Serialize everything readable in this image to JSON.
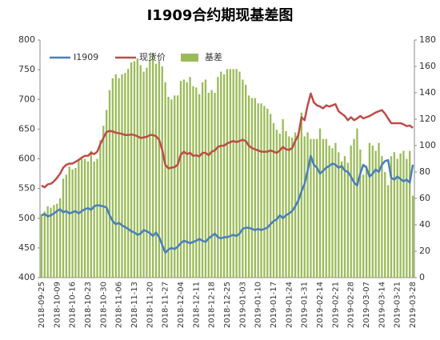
{
  "chart_data": {
    "type": "combo",
    "title": "I1909合约期现基差图",
    "categories": [
      "2018-09-25",
      null,
      null,
      null,
      null,
      "2018-10-09",
      null,
      null,
      null,
      null,
      "2018-10-16",
      null,
      null,
      null,
      null,
      "2018-10-23",
      null,
      null,
      null,
      null,
      "2018-10-30",
      null,
      null,
      null,
      null,
      "2018-11-06",
      null,
      null,
      null,
      null,
      "2018-11-13",
      null,
      null,
      null,
      null,
      "2018-11-20",
      null,
      null,
      null,
      null,
      "2018-11-27",
      null,
      null,
      null,
      null,
      "2018-12-04",
      null,
      null,
      null,
      null,
      "2018-12-11",
      null,
      null,
      null,
      null,
      "2018-12-18",
      null,
      null,
      null,
      null,
      "2018-12-25",
      null,
      null,
      null,
      null,
      "2019-01-03",
      null,
      null,
      null,
      null,
      "2019-01-10",
      null,
      null,
      null,
      null,
      "2019-01-17",
      null,
      null,
      null,
      null,
      "2019-01-24",
      null,
      null,
      null,
      null,
      "2019-01-31",
      null,
      null,
      null,
      null,
      "2019-02-14",
      null,
      null,
      null,
      null,
      "2019-02-21",
      null,
      null,
      null,
      null,
      "2019-02-28",
      null,
      null,
      null,
      null,
      "2019-03-07",
      null,
      null,
      null,
      null,
      "2019-03-14",
      null,
      null,
      null,
      null,
      "2019-03-21",
      null,
      null,
      null,
      null,
      "2019-03-28"
    ],
    "series": [
      {
        "name": "I1909",
        "type": "line",
        "color": "#4a7ebb",
        "values": [
          505,
          507,
          503,
          505,
          508,
          512,
          515,
          510,
          512,
          508,
          510,
          512,
          508,
          512,
          515,
          517,
          514,
          520,
          522,
          521,
          520,
          518,
          505,
          495,
          490,
          492,
          488,
          485,
          482,
          478,
          476,
          472,
          474,
          480,
          478,
          475,
          470,
          476,
          468,
          455,
          442,
          447,
          450,
          448,
          452,
          458,
          462,
          460,
          458,
          460,
          462,
          465,
          462,
          460,
          466,
          470,
          474,
          468,
          466,
          468,
          468,
          470,
          472,
          470,
          474,
          482,
          484,
          484,
          482,
          480,
          482,
          480,
          482,
          484,
          490,
          495,
          498,
          505,
          500,
          505,
          508,
          512,
          520,
          530,
          545,
          558,
          580,
          605,
          590,
          585,
          575,
          580,
          585,
          588,
          592,
          590,
          585,
          588,
          580,
          578,
          570,
          560,
          555,
          575,
          590,
          585,
          570,
          575,
          582,
          578,
          590,
          596,
          598,
          568,
          565,
          570,
          566,
          562,
          565,
          560,
          590
        ]
      },
      {
        "name": "现货价",
        "type": "line",
        "color": "#be4b48",
        "values": [
          555,
          552,
          557,
          558,
          562,
          568,
          575,
          585,
          590,
          592,
          592,
          595,
          598,
          602,
          605,
          605,
          610,
          608,
          612,
          625,
          635,
          645,
          647,
          646,
          644,
          643,
          642,
          640,
          640,
          641,
          640,
          638,
          635,
          636,
          637,
          640,
          640,
          638,
          632,
          615,
          590,
          584,
          585,
          586,
          590,
          607,
          612,
          608,
          610,
          605,
          606,
          604,
          610,
          610,
          606,
          612,
          614,
          620,
          622,
          622,
          626,
          628,
          630,
          628,
          630,
          632,
          630,
          622,
          618,
          616,
          614,
          612,
          612,
          612,
          614,
          612,
          610,
          614,
          620,
          616,
          615,
          618,
          630,
          640,
          670,
          665,
          690,
          710,
          695,
          690,
          688,
          685,
          690,
          688,
          690,
          692,
          680,
          676,
          672,
          665,
          670,
          665,
          668,
          672,
          668,
          670,
          672,
          675,
          678,
          680,
          682,
          676,
          668,
          660,
          660,
          660,
          660,
          658,
          655,
          656,
          652
        ]
      },
      {
        "name": "基差",
        "type": "bar",
        "axis": "y2",
        "color": "#9bbb59",
        "values": [
          48,
          50,
          54,
          53,
          55,
          56,
          60,
          75,
          78,
          84,
          82,
          83,
          90,
          90,
          90,
          88,
          96,
          88,
          90,
          104,
          115,
          127,
          142,
          151,
          154,
          151,
          154,
          155,
          158,
          163,
          164,
          166,
          161,
          156,
          159,
          165,
          170,
          162,
          164,
          160,
          148,
          137,
          135,
          138,
          138,
          149,
          150,
          148,
          152,
          145,
          144,
          139,
          148,
          150,
          140,
          142,
          140,
          152,
          156,
          154,
          158,
          158,
          158,
          158,
          156,
          150,
          146,
          138,
          136,
          136,
          132,
          132,
          130,
          128,
          124,
          117,
          112,
          109,
          120,
          111,
          107,
          106,
          110,
          110,
          125,
          107,
          110,
          105,
          105,
          105,
          113,
          105,
          105,
          100,
          98,
          102,
          95,
          88,
          92,
          87,
          100,
          105,
          113,
          97,
          78,
          85,
          102,
          100,
          96,
          102,
          92,
          80,
          70,
          92,
          95,
          90,
          94,
          96,
          90,
          96,
          62
        ]
      }
    ],
    "ylim": [
      400,
      800
    ],
    "yticks": [
      400,
      450,
      500,
      550,
      600,
      650,
      700,
      750,
      800
    ],
    "y2lim": [
      0,
      180
    ],
    "y2ticks": [
      0,
      20,
      40,
      60,
      80,
      100,
      120,
      140,
      160,
      180
    ],
    "legend": "top-left"
  }
}
